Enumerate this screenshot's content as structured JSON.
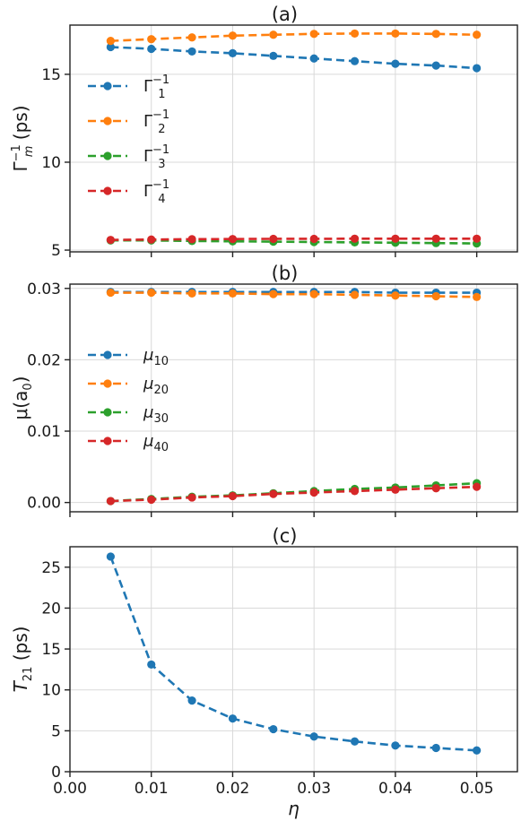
{
  "chart_data": [
    {
      "type": "line",
      "title": "(a)",
      "xlabel": "",
      "ylabel_main": "Γ",
      "ylabel_sup": "−1",
      "ylabel_sub": "m",
      "ylabel_rest": " (ps)",
      "ylim": [
        4.9,
        17.8
      ],
      "yticks": [
        5,
        10,
        15
      ],
      "ytick_labels": [
        "5",
        "10",
        "15"
      ],
      "grid": true,
      "legend_placement": "left, below top",
      "x": [
        0.005,
        0.01,
        0.015,
        0.02,
        0.025,
        0.03,
        0.035,
        0.04,
        0.045,
        0.05
      ],
      "series": [
        {
          "name": "Γ",
          "name_sub": "1",
          "name_sup": "−1",
          "color": "#1f77b4",
          "values": [
            16.55,
            16.45,
            16.3,
            16.2,
            16.05,
            15.9,
            15.75,
            15.6,
            15.5,
            15.35
          ]
        },
        {
          "name": "Γ",
          "name_sub": "2",
          "name_sup": "−1",
          "color": "#ff7f0e",
          "values": [
            16.9,
            17.0,
            17.1,
            17.2,
            17.25,
            17.3,
            17.32,
            17.32,
            17.3,
            17.25
          ]
        },
        {
          "name": "Γ",
          "name_sub": "3",
          "name_sup": "−1",
          "color": "#2ca02c",
          "values": [
            5.55,
            5.55,
            5.52,
            5.5,
            5.48,
            5.46,
            5.44,
            5.42,
            5.4,
            5.38
          ]
        },
        {
          "name": "Γ",
          "name_sub": "4",
          "name_sup": "−1",
          "color": "#d62728",
          "values": [
            5.58,
            5.6,
            5.62,
            5.63,
            5.64,
            5.64,
            5.65,
            5.65,
            5.65,
            5.65
          ]
        }
      ]
    },
    {
      "type": "line",
      "title": "(b)",
      "xlabel": "",
      "ylabel_main": "μ(a",
      "ylabel_sub": "0",
      "ylabel_rest": ")",
      "ylim": [
        -0.0013,
        0.0306
      ],
      "yticks": [
        0.0,
        0.01,
        0.02,
        0.03
      ],
      "ytick_labels": [
        "0.00",
        "0.01",
        "0.02",
        "0.03"
      ],
      "grid": true,
      "legend_placement": "center-left",
      "x": [
        0.005,
        0.01,
        0.015,
        0.02,
        0.025,
        0.03,
        0.035,
        0.04,
        0.045,
        0.05
      ],
      "series": [
        {
          "name": "μ",
          "name_sub": "10",
          "color": "#1f77b4",
          "values": [
            0.0295,
            0.0295,
            0.0295,
            0.0295,
            0.0295,
            0.0295,
            0.0295,
            0.0294,
            0.0294,
            0.0294
          ]
        },
        {
          "name": "μ",
          "name_sub": "20",
          "color": "#ff7f0e",
          "values": [
            0.0294,
            0.0294,
            0.0293,
            0.0293,
            0.0292,
            0.0292,
            0.0291,
            0.029,
            0.0289,
            0.0288
          ]
        },
        {
          "name": "μ",
          "name_sub": "30",
          "color": "#2ca02c",
          "values": [
            0.0002,
            0.0005,
            0.0008,
            0.001,
            0.0013,
            0.0016,
            0.0019,
            0.0021,
            0.0024,
            0.0027
          ]
        },
        {
          "name": "μ",
          "name_sub": "40",
          "color": "#d62728",
          "values": [
            0.0002,
            0.0004,
            0.0007,
            0.0009,
            0.0012,
            0.0014,
            0.0016,
            0.0018,
            0.002,
            0.0022
          ]
        }
      ]
    },
    {
      "type": "line",
      "title": "(c)",
      "xlabel": "η",
      "ylabel_main": "T",
      "ylabel_sub": "21",
      "ylabel_rest": " (ps)",
      "ylim": [
        0,
        27.5
      ],
      "yticks": [
        0,
        5,
        10,
        15,
        20,
        25
      ],
      "ytick_labels": [
        "0",
        "5",
        "10",
        "15",
        "20",
        "25"
      ],
      "xlim": [
        0.0,
        0.055
      ],
      "xticks": [
        0.0,
        0.01,
        0.02,
        0.03,
        0.04,
        0.05
      ],
      "xtick_labels": [
        "0.00",
        "0.01",
        "0.02",
        "0.03",
        "0.04",
        "0.05"
      ],
      "grid": true,
      "x": [
        0.005,
        0.01,
        0.015,
        0.02,
        0.025,
        0.03,
        0.035,
        0.04,
        0.045,
        0.05
      ],
      "series": [
        {
          "color": "#1f77b4",
          "values": [
            26.3,
            13.1,
            8.7,
            6.5,
            5.2,
            4.3,
            3.7,
            3.2,
            2.9,
            2.6
          ]
        }
      ]
    }
  ]
}
